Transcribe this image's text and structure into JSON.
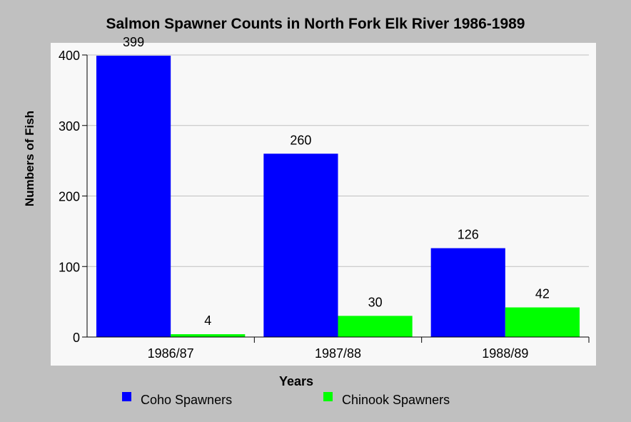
{
  "chart_data": {
    "type": "bar",
    "title": "Salmon Spawner Counts in North Fork Elk River 1986-1989",
    "xlabel": "Years",
    "ylabel": "Numbers of Fish",
    "categories": [
      "1986/87",
      "1987/88",
      "1988/89"
    ],
    "series": [
      {
        "name": "Coho Spawners",
        "color": "#0000ff",
        "values": [
          399,
          260,
          126
        ]
      },
      {
        "name": "Chinook Spawners",
        "color": "#00ff00",
        "values": [
          4,
          30,
          42
        ]
      }
    ],
    "yticks": [
      0,
      100,
      200,
      300,
      400
    ],
    "ylim": [
      0,
      400
    ],
    "grid": true,
    "legend_position": "bottom",
    "colors": {
      "background": "#c0c0c0",
      "plot_background": "#f8f8f8",
      "gridline": "#c0c0c0"
    }
  }
}
